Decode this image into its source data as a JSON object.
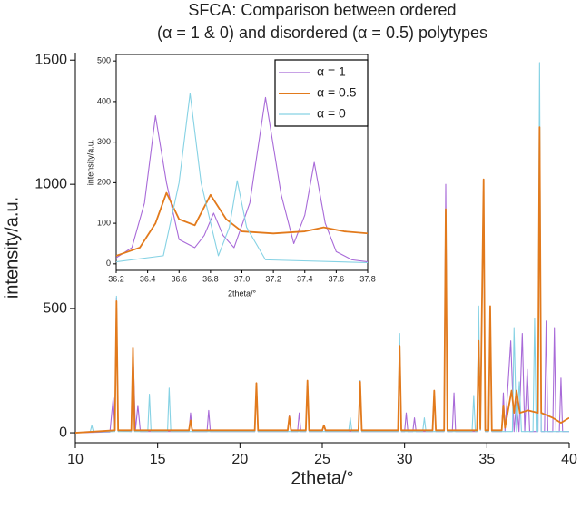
{
  "chart_data": [
    {
      "type": "line",
      "title": "SFCA: Comparison between ordered",
      "subtitle": "(α = 1 & 0) and disordered (α = 0.5) polytypes",
      "x_label": "2theta/°",
      "y_label": "intensity/a.u.",
      "xlim": [
        10,
        40
      ],
      "ylim": [
        -40,
        1530
      ],
      "xticks": [
        10,
        15,
        20,
        25,
        30,
        35,
        40
      ],
      "yticks": [
        0,
        500,
        1000,
        1500
      ],
      "series": [
        {
          "color": "#a86ad8",
          "x": [
            10,
            12.1,
            12.3,
            12.4,
            12.5,
            12.6,
            13.4,
            13.5,
            13.65,
            13.8,
            13.95,
            16.9,
            17.0,
            17.1,
            18.0,
            18.1,
            18.2,
            20.9,
            21.0,
            21.1,
            22.9,
            23.0,
            23.1,
            23.5,
            23.6,
            23.7,
            24.0,
            24.1,
            24.2,
            25.0,
            25.1,
            25.2,
            27.2,
            27.3,
            27.4,
            29.6,
            29.7,
            29.8,
            30.0,
            30.1,
            30.2,
            30.5,
            30.6,
            30.7,
            31.7,
            31.8,
            31.9,
            32.4,
            32.5,
            32.6,
            32.9,
            33.0,
            33.1,
            34.4,
            34.5,
            34.6,
            34.8,
            34.9,
            35.1,
            35.2,
            35.3,
            35.9,
            36.0,
            36.1,
            36.45,
            36.65,
            36.8,
            36.95,
            37.15,
            37.3,
            37.45,
            37.6,
            38.1,
            38.2,
            38.3,
            38.5,
            38.6,
            38.7,
            39.0,
            39.1,
            39.2,
            39.4,
            39.5,
            39.6,
            40
          ],
          "values": [
            0,
            3,
            140,
            10,
            540,
            10,
            5,
            340,
            10,
            110,
            5,
            5,
            80,
            5,
            5,
            90,
            5,
            5,
            200,
            5,
            5,
            70,
            5,
            5,
            80,
            5,
            5,
            210,
            5,
            5,
            30,
            5,
            5,
            210,
            5,
            5,
            360,
            5,
            5,
            80,
            5,
            5,
            60,
            5,
            5,
            160,
            5,
            5,
            1000,
            5,
            5,
            160,
            5,
            5,
            350,
            10,
            1020,
            5,
            5,
            500,
            5,
            5,
            160,
            5,
            370,
            5,
            125,
            5,
            400,
            5,
            255,
            5,
            5,
            1250,
            5,
            5,
            450,
            5,
            5,
            420,
            5,
            5,
            220,
            5,
            5
          ]
        },
        {
          "color": "#86d2e4",
          "x": [
            10,
            10.9,
            11.0,
            11.1,
            12.4,
            12.5,
            12.6,
            13.4,
            13.5,
            13.6,
            14.4,
            14.5,
            14.6,
            15.6,
            15.7,
            15.8,
            20.9,
            21.0,
            21.1,
            24.0,
            24.1,
            24.2,
            26.6,
            26.7,
            26.8,
            27.2,
            27.3,
            27.4,
            29.6,
            29.7,
            29.8,
            31.1,
            31.2,
            31.3,
            32.4,
            32.5,
            32.6,
            34.1,
            34.2,
            34.3,
            34.4,
            34.5,
            34.6,
            34.8,
            34.9,
            35.1,
            35.2,
            35.3,
            36.55,
            36.65,
            36.8,
            36.97,
            37.1,
            37.8,
            37.9,
            38.0,
            38.1,
            38.2,
            38.3,
            40
          ],
          "values": [
            0,
            3,
            30,
            3,
            5,
            550,
            5,
            5,
            330,
            5,
            5,
            155,
            5,
            5,
            180,
            5,
            5,
            200,
            5,
            5,
            210,
            5,
            5,
            60,
            5,
            5,
            210,
            5,
            5,
            400,
            5,
            5,
            60,
            5,
            5,
            900,
            5,
            5,
            150,
            5,
            5,
            510,
            10,
            1000,
            5,
            5,
            500,
            5,
            5,
            420,
            5,
            205,
            5,
            5,
            460,
            5,
            5,
            1490,
            5,
            5
          ]
        },
        {
          "color": "#e27a1c",
          "x": [
            10,
            12.4,
            12.5,
            12.6,
            13.4,
            13.5,
            13.6,
            16.9,
            17.0,
            17.1,
            20.9,
            21.0,
            21.1,
            22.9,
            23.0,
            23.1,
            24.0,
            24.1,
            24.2,
            25.0,
            25.1,
            25.2,
            27.2,
            27.3,
            27.4,
            29.6,
            29.7,
            29.8,
            31.7,
            31.8,
            31.9,
            32.4,
            32.5,
            32.6,
            34.4,
            34.5,
            34.6,
            34.8,
            34.9,
            35.1,
            35.2,
            35.3,
            35.9,
            36.0,
            36.1,
            36.5,
            36.65,
            36.8,
            37.0,
            37.5,
            38.1,
            38.2,
            38.3,
            39.0,
            39.5,
            40
          ],
          "values": [
            0,
            10,
            530,
            10,
            10,
            340,
            10,
            10,
            50,
            10,
            10,
            200,
            10,
            10,
            65,
            10,
            10,
            210,
            10,
            10,
            30,
            10,
            10,
            205,
            10,
            10,
            350,
            10,
            10,
            170,
            10,
            10,
            900,
            10,
            10,
            370,
            15,
            1020,
            10,
            10,
            510,
            10,
            10,
            110,
            20,
            170,
            80,
            170,
            80,
            90,
            80,
            1230,
            80,
            60,
            40,
            60
          ]
        }
      ]
    },
    {
      "type": "line",
      "x_label": "2theta/°",
      "y_label": "intensity/a.u.",
      "xlim": [
        36.2,
        37.8
      ],
      "ylim": [
        -16,
        516
      ],
      "xticks": [
        36.2,
        36.4,
        36.6,
        36.8,
        {
          "value": 37,
          "label": "37.0"
        },
        37.2,
        37.4,
        37.6,
        37.8
      ],
      "yticks": [
        0,
        100,
        200,
        300,
        400,
        500
      ],
      "legend": "upper right",
      "series": [
        {
          "name": "α = 1",
          "color": "#a86ad8",
          "x": [
            36.2,
            36.3,
            36.38,
            36.45,
            36.52,
            36.6,
            36.7,
            36.76,
            36.82,
            36.88,
            36.95,
            37.05,
            37.15,
            37.25,
            37.33,
            37.4,
            37.46,
            37.53,
            37.6,
            37.7,
            37.8
          ],
          "values": [
            15,
            40,
            150,
            365,
            200,
            60,
            40,
            70,
            125,
            70,
            40,
            150,
            410,
            170,
            50,
            120,
            250,
            100,
            30,
            10,
            5
          ]
        },
        {
          "name": "α = 0.5",
          "color": "#e27a1c",
          "x": [
            36.2,
            36.35,
            36.45,
            36.52,
            36.6,
            36.7,
            36.8,
            36.9,
            37.0,
            37.2,
            37.4,
            37.52,
            37.65,
            37.8
          ],
          "values": [
            20,
            40,
            100,
            175,
            110,
            95,
            170,
            110,
            80,
            75,
            80,
            90,
            80,
            75
          ]
        },
        {
          "name": "α = 0",
          "color": "#86d2e4",
          "x": [
            36.2,
            36.5,
            36.6,
            36.67,
            36.74,
            36.85,
            36.92,
            36.97,
            37.03,
            37.15,
            37.8
          ],
          "values": [
            5,
            20,
            200,
            420,
            200,
            20,
            90,
            205,
            90,
            10,
            3
          ]
        }
      ]
    }
  ]
}
